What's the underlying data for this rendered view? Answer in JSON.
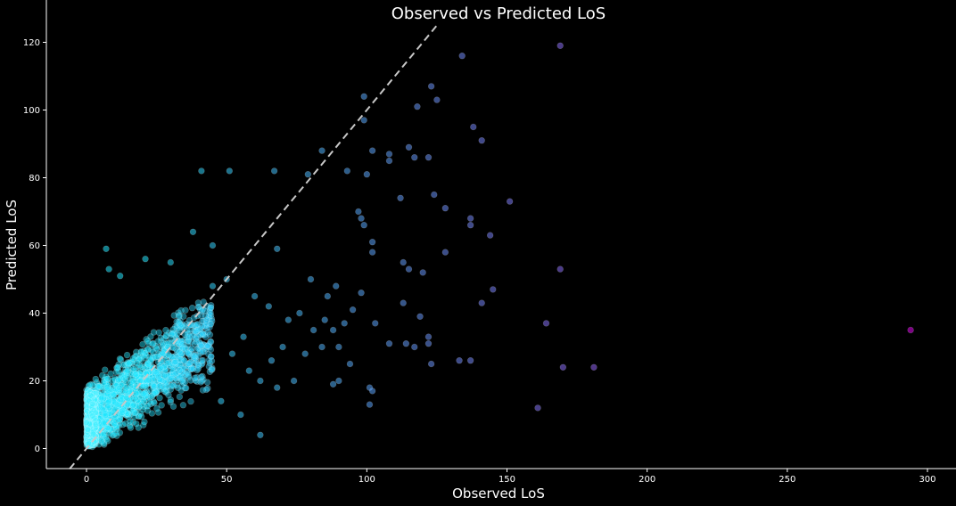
{
  "chart_data": {
    "type": "scatter",
    "title": "Observed vs Predicted LoS",
    "xlabel": "Observed LoS",
    "ylabel": "Predicted LoS",
    "xlim": [
      -6,
      306
    ],
    "ylim": [
      -6,
      125
    ],
    "xticks": [
      0,
      50,
      100,
      150,
      200,
      250,
      300
    ],
    "yticks": [
      0,
      20,
      40,
      60,
      80,
      100,
      120
    ],
    "grid": false,
    "reference_line": {
      "style": "dashed",
      "color": "#c8c8c8",
      "relation": "y = x"
    },
    "colormap": "cool",
    "dense_cluster": {
      "x_range": [
        0,
        40
      ],
      "y_range": [
        0,
        45
      ],
      "description": "high-density region near origin"
    },
    "points": [
      [
        169,
        119
      ],
      [
        134,
        116
      ],
      [
        123,
        107
      ],
      [
        99,
        104
      ],
      [
        125,
        103
      ],
      [
        118,
        101
      ],
      [
        138,
        95
      ],
      [
        99,
        97
      ],
      [
        141,
        91
      ],
      [
        115,
        89
      ],
      [
        102,
        88
      ],
      [
        117,
        86
      ],
      [
        122,
        86
      ],
      [
        108,
        87
      ],
      [
        108,
        85
      ],
      [
        93,
        82
      ],
      [
        100,
        81
      ],
      [
        84,
        88
      ],
      [
        79,
        81
      ],
      [
        41,
        82
      ],
      [
        51,
        82
      ],
      [
        67,
        82
      ],
      [
        112,
        74
      ],
      [
        124,
        75
      ],
      [
        151,
        73
      ],
      [
        128,
        71
      ],
      [
        98,
        68
      ],
      [
        97,
        70
      ],
      [
        137,
        68
      ],
      [
        137,
        66
      ],
      [
        99,
        66
      ],
      [
        144,
        63
      ],
      [
        102,
        61
      ],
      [
        68,
        59
      ],
      [
        45,
        60
      ],
      [
        38,
        64
      ],
      [
        7,
        59
      ],
      [
        21,
        56
      ],
      [
        102,
        58
      ],
      [
        113,
        55
      ],
      [
        120,
        52
      ],
      [
        128,
        58
      ],
      [
        115,
        53
      ],
      [
        169,
        53
      ],
      [
        8,
        53
      ],
      [
        12,
        51
      ],
      [
        145,
        47
      ],
      [
        141,
        43
      ],
      [
        103,
        37
      ],
      [
        113,
        43
      ],
      [
        164,
        37
      ],
      [
        119,
        39
      ],
      [
        108,
        31
      ],
      [
        117,
        30
      ],
      [
        114,
        31
      ],
      [
        122,
        33
      ],
      [
        122,
        31
      ],
      [
        133,
        26
      ],
      [
        137,
        26
      ],
      [
        123,
        25
      ],
      [
        170,
        24
      ],
      [
        181,
        24
      ],
      [
        161,
        12
      ],
      [
        101,
        18
      ],
      [
        102,
        17
      ],
      [
        101,
        13
      ],
      [
        294,
        35
      ],
      [
        88,
        35
      ],
      [
        92,
        37
      ],
      [
        95,
        41
      ],
      [
        98,
        46
      ],
      [
        85,
        38
      ],
      [
        89,
        48
      ],
      [
        76,
        40
      ],
      [
        81,
        35
      ],
      [
        90,
        20
      ],
      [
        88,
        19
      ],
      [
        70,
        30
      ],
      [
        66,
        26
      ],
      [
        58,
        23
      ],
      [
        62,
        20
      ],
      [
        55,
        10
      ],
      [
        62,
        4
      ],
      [
        48,
        14
      ],
      [
        30,
        55
      ],
      [
        60,
        45
      ],
      [
        50,
        50
      ],
      [
        45,
        48
      ],
      [
        65,
        42
      ],
      [
        72,
        38
      ],
      [
        80,
        50
      ],
      [
        86,
        45
      ],
      [
        90,
        30
      ],
      [
        94,
        25
      ],
      [
        84,
        30
      ],
      [
        78,
        28
      ],
      [
        74,
        20
      ],
      [
        68,
        18
      ],
      [
        56,
        33
      ],
      [
        52,
        28
      ]
    ]
  }
}
